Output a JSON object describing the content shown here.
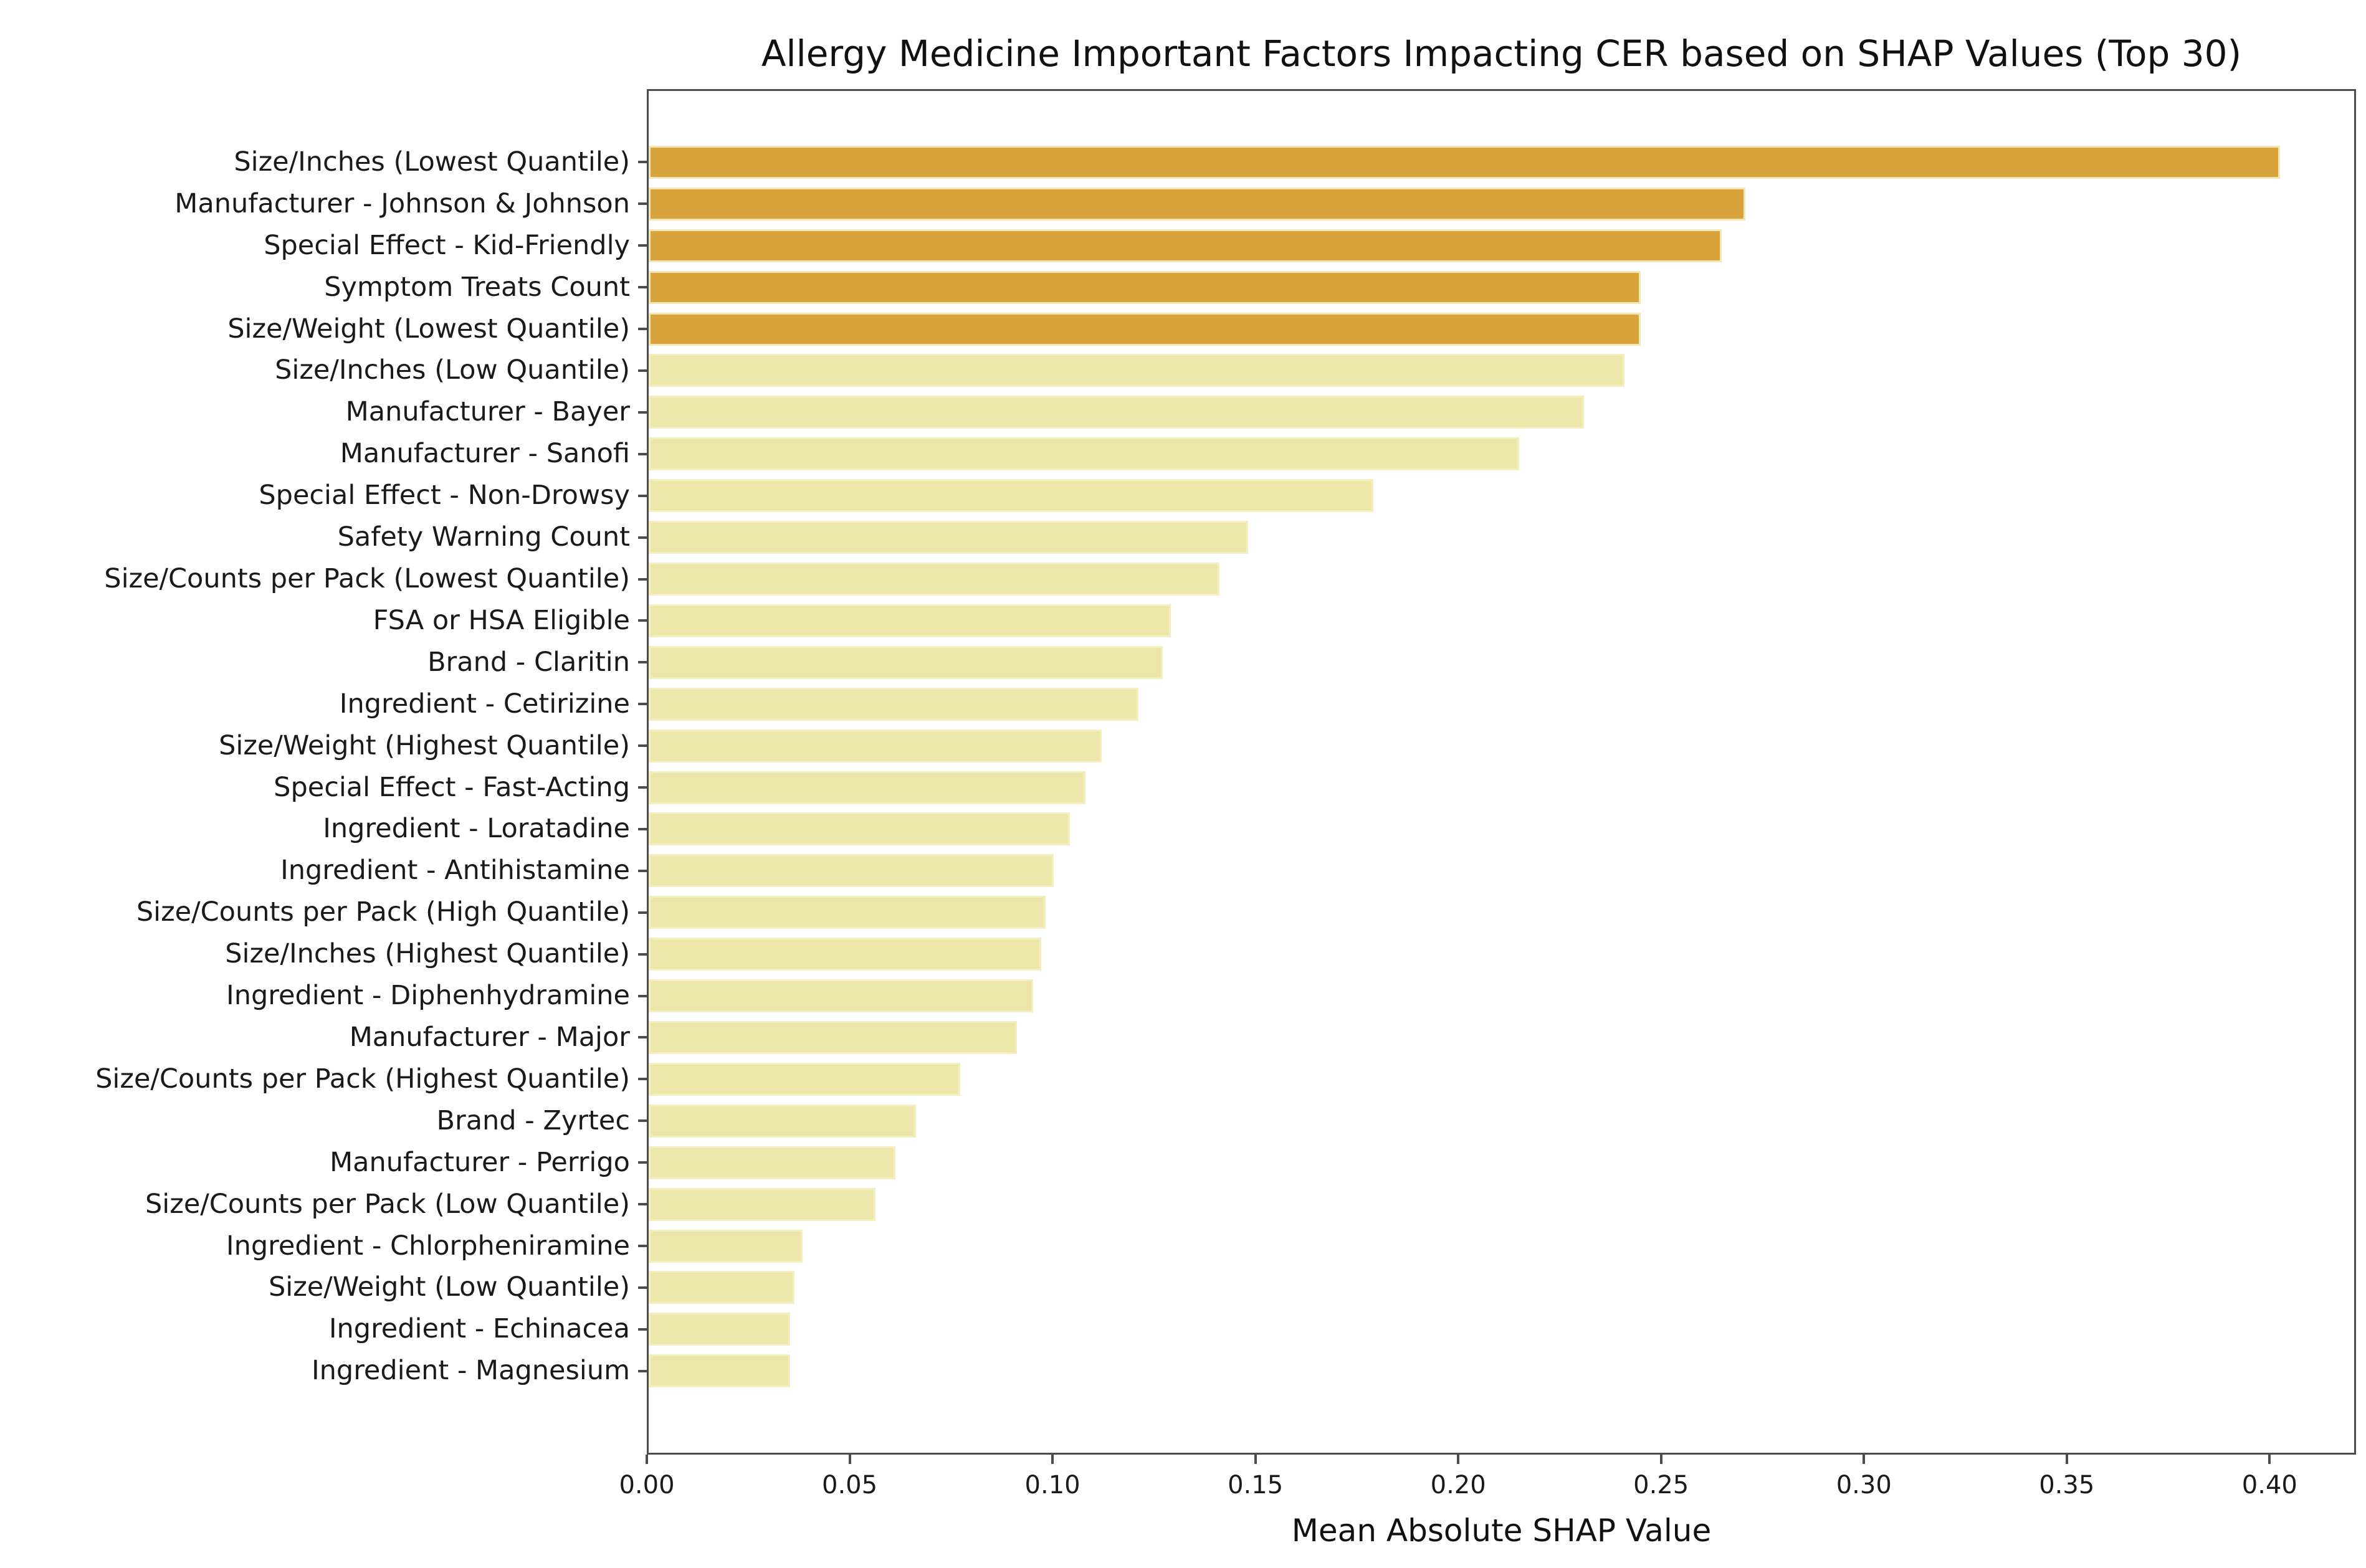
{
  "chart_data": {
    "type": "bar",
    "orientation": "horizontal",
    "title": "Allergy Medicine Important Factors Impacting CER based on SHAP Values (Top 30)",
    "xlabel": "Mean Absolute SHAP Value",
    "ylabel": "",
    "categories": [
      "Size/Inches (Lowest Quantile)",
      "Manufacturer - Johnson & Johnson",
      "Special Effect - Kid-Friendly",
      "Symptom Treats Count",
      "Size/Weight (Lowest Quantile)",
      "Size/Inches (Low Quantile)",
      "Manufacturer - Bayer",
      "Manufacturer - Sanofi",
      "Special Effect - Non-Drowsy",
      "Safety Warning Count",
      "Size/Counts per Pack (Lowest Quantile)",
      "FSA or HSA Eligible",
      "Brand - Claritin",
      "Ingredient - Cetirizine",
      "Size/Weight (Highest Quantile)",
      "Special Effect - Fast-Acting",
      "Ingredient - Loratadine",
      "Ingredient - Antihistamine",
      "Size/Counts per Pack (High Quantile)",
      "Size/Inches (Highest Quantile)",
      "Ingredient - Diphenhydramine",
      "Manufacturer - Major",
      "Size/Counts per Pack (Highest Quantile)",
      "Brand - Zyrtec",
      "Manufacturer - Perrigo",
      "Size/Counts per Pack (Low Quantile)",
      "Ingredient - Chlorpheniramine",
      "Size/Weight (Low Quantile)",
      "Ingredient - Echinacea",
      "Ingredient - Magnesium"
    ],
    "values": [
      0.403,
      0.271,
      0.265,
      0.245,
      0.245,
      0.241,
      0.231,
      0.215,
      0.179,
      0.148,
      0.141,
      0.129,
      0.127,
      0.121,
      0.112,
      0.108,
      0.104,
      0.1,
      0.098,
      0.097,
      0.095,
      0.091,
      0.077,
      0.066,
      0.061,
      0.056,
      0.038,
      0.036,
      0.035,
      0.035
    ],
    "xlim": [
      0,
      0.4213
    ],
    "xticks": [
      "0.00",
      "0.05",
      "0.10",
      "0.15",
      "0.20",
      "0.25",
      "0.30",
      "0.35",
      "0.40"
    ],
    "grid": false,
    "legend": null,
    "colors": {
      "highlight": "#d9a43c",
      "base": "#ece7a8",
      "highlight_count": 5,
      "spine": "#4c4c4c",
      "text": "#1a1a1a"
    }
  }
}
